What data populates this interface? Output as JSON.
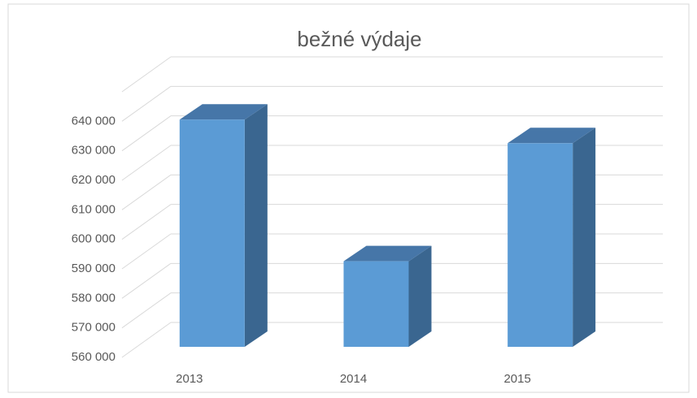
{
  "chart_data": {
    "type": "bar3d",
    "title": "bežné výdaje",
    "categories": [
      "2013",
      "2014",
      "2015"
    ],
    "values": [
      637000,
      589000,
      629000
    ],
    "color": "#5b9bd5",
    "ylim": [
      560000,
      650000
    ],
    "yticks": [
      {
        "value": 560000,
        "label": "560 000"
      },
      {
        "value": 570000,
        "label": "570 000"
      },
      {
        "value": 580000,
        "label": "580 000"
      },
      {
        "value": 590000,
        "label": "590 000"
      },
      {
        "value": 600000,
        "label": "600 000"
      },
      {
        "value": 610000,
        "label": "610 000"
      },
      {
        "value": 620000,
        "label": "620 000"
      },
      {
        "value": 630000,
        "label": "630 000"
      },
      {
        "value": 640000,
        "label": "640 000"
      }
    ],
    "grid": true
  }
}
